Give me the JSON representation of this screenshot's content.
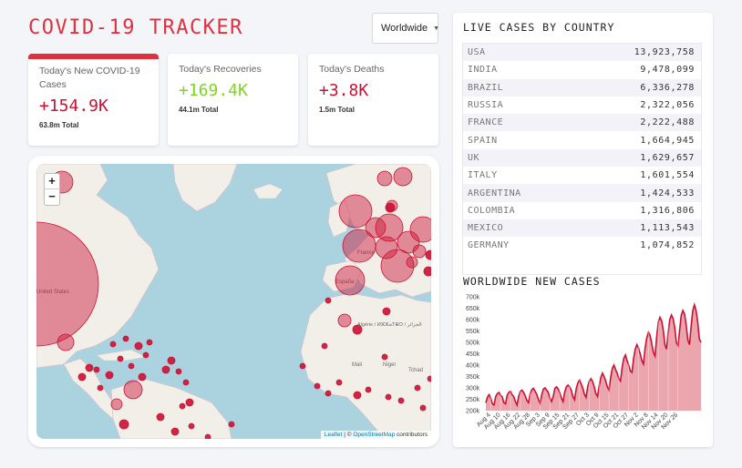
{
  "header": {
    "title": "COVID-19 TRACKER"
  },
  "country_select": {
    "selected": "Worldwide"
  },
  "stats": {
    "cases": {
      "label": "Today's New COVID-19 Cases",
      "value": "+154.9K",
      "total": "63.8m Total"
    },
    "recovered": {
      "label": "Today's Recoveries",
      "value": "+169.4K",
      "total": "44.1m Total"
    },
    "deaths": {
      "label": "Today's Deaths",
      "value": "+3.8K",
      "total": "1.5m Total"
    }
  },
  "map": {
    "zoom_in": "+",
    "zoom_out": "−",
    "attribution_leaflet": "Leaflet",
    "attribution_sep": " | © ",
    "attribution_osm": "OpenStreetMap",
    "attribution_tail": " contributors",
    "place_labels": [
      "United States",
      "France",
      "España",
      "Algérie / ⵍⵣⵣⴰⵢⴻⵔ / الجزائر",
      "Mali",
      "Niger",
      "Tchad"
    ],
    "marker_color": "#cc1034"
  },
  "live_cases": {
    "title": "LIVE CASES BY COUNTRY",
    "rows": [
      {
        "country": "USA",
        "cases": "13,923,758"
      },
      {
        "country": "INDIA",
        "cases": "9,478,099"
      },
      {
        "country": "BRAZIL",
        "cases": "6,336,278"
      },
      {
        "country": "RUSSIA",
        "cases": "2,322,056"
      },
      {
        "country": "FRANCE",
        "cases": "2,222,488"
      },
      {
        "country": "SPAIN",
        "cases": "1,664,945"
      },
      {
        "country": "UK",
        "cases": "1,629,657"
      },
      {
        "country": "ITALY",
        "cases": "1,601,554"
      },
      {
        "country": "ARGENTINA",
        "cases": "1,424,533"
      },
      {
        "country": "COLOMBIA",
        "cases": "1,316,806"
      },
      {
        "country": "MEXICO",
        "cases": "1,113,543"
      },
      {
        "country": "GERMANY",
        "cases": "1,074,852"
      }
    ]
  },
  "new_cases_chart": {
    "title": "WORLDWIDE NEW CASES",
    "colors": {
      "line": "#cc1034",
      "fill": "#e8959f"
    }
  },
  "chart_data": {
    "type": "area",
    "title": "WORLDWIDE NEW CASES",
    "xlabel": "",
    "ylabel": "",
    "ylim": [
      200000,
      700000
    ],
    "y_ticks": [
      "200k",
      "250k",
      "300k",
      "350k",
      "400k",
      "450k",
      "500k",
      "550k",
      "600k",
      "650k",
      "700k"
    ],
    "x_ticks": [
      "Aug 4",
      "Aug 10",
      "Aug 16",
      "Aug 22",
      "Aug 28",
      "Sep 3",
      "Sep 9",
      "Sep 15",
      "Sep 21",
      "Sep 27",
      "Oct 3",
      "Oct 9",
      "Oct 15",
      "Oct 21",
      "Oct 27",
      "Nov 2",
      "Nov 8",
      "Nov 14",
      "Nov 20",
      "Nov 26"
    ],
    "start": "2020-08-01",
    "values": [
      235000,
      260000,
      270000,
      255000,
      230000,
      225000,
      262000,
      275000,
      280000,
      268000,
      260000,
      235000,
      230000,
      268000,
      280000,
      285000,
      270000,
      262000,
      240000,
      225000,
      262000,
      285000,
      290000,
      280000,
      265000,
      245000,
      235000,
      275000,
      292000,
      298000,
      285000,
      272000,
      250000,
      232000,
      270000,
      295000,
      300000,
      290000,
      280000,
      255000,
      240000,
      262000,
      298000,
      305000,
      295000,
      280000,
      255000,
      240000,
      282000,
      305000,
      312000,
      305000,
      290000,
      262000,
      248000,
      295000,
      322000,
      335000,
      318000,
      300000,
      272000,
      258000,
      305000,
      330000,
      340000,
      328000,
      305000,
      275000,
      262000,
      308000,
      345000,
      365000,
      350000,
      330000,
      305000,
      290000,
      345000,
      385000,
      400000,
      380000,
      365000,
      340000,
      330000,
      390000,
      430000,
      445000,
      420000,
      400000,
      375000,
      368000,
      430000,
      470000,
      490000,
      475000,
      450000,
      420000,
      405000,
      475000,
      520000,
      545000,
      530000,
      495000,
      455000,
      440000,
      525000,
      590000,
      610000,
      595000,
      555000,
      490000,
      470000,
      545000,
      600000,
      620000,
      605000,
      565000,
      500000,
      485000,
      555000,
      620000,
      640000,
      625000,
      575000,
      510000,
      490000,
      570000,
      640000,
      665000,
      640000,
      590000,
      515000,
      500000
    ]
  }
}
